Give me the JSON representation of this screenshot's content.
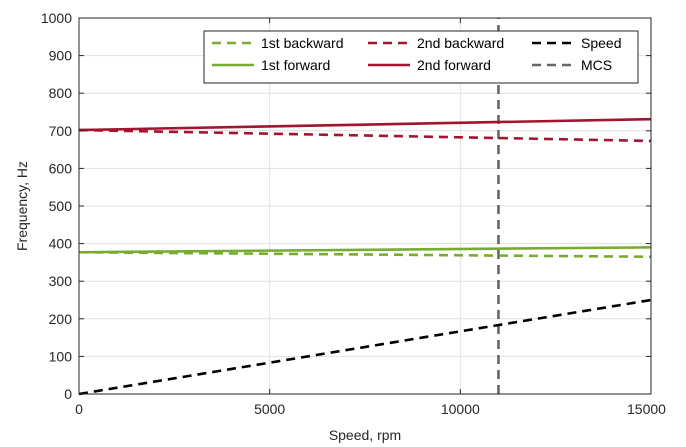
{
  "chart_data": {
    "type": "line",
    "xlabel": "Speed, rpm",
    "ylabel": "Frequency, Hz",
    "xlim": [
      0,
      15000
    ],
    "ylim": [
      0,
      1000
    ],
    "xticks": [
      0,
      5000,
      10000,
      15000
    ],
    "xtick_labels": [
      "0",
      "5000",
      "10000",
      "15000"
    ],
    "yticks": [
      0,
      100,
      200,
      300,
      400,
      500,
      600,
      700,
      800,
      900,
      1000
    ],
    "ytick_labels": [
      "0",
      "100",
      "200",
      "300",
      "400",
      "500",
      "600",
      "700",
      "800",
      "900",
      "1000"
    ],
    "grid": true,
    "legend_position": "top-right",
    "series": [
      {
        "name": "1st backward",
        "color": "#77AC30",
        "dash": "dashed",
        "x": [
          0,
          15000
        ],
        "y": [
          377,
          365
        ]
      },
      {
        "name": "2nd backward",
        "color": "#A2142F",
        "dash": "dashed",
        "x": [
          0,
          15000
        ],
        "y": [
          702,
          673
        ]
      },
      {
        "name": "Speed",
        "color": "#000000",
        "dash": "dashed",
        "x": [
          0,
          15000
        ],
        "y": [
          0,
          250
        ]
      },
      {
        "name": "1st forward",
        "color": "#77AC30",
        "dash": "solid",
        "x": [
          0,
          15000
        ],
        "y": [
          377,
          390
        ]
      },
      {
        "name": "2nd forward",
        "color": "#A2142F",
        "dash": "solid",
        "x": [
          0,
          15000
        ],
        "y": [
          702,
          731
        ]
      },
      {
        "name": "MCS",
        "color": "#666666",
        "dash": "dashed",
        "x": [
          11000,
          11000
        ],
        "y": [
          0,
          1000
        ]
      }
    ]
  }
}
